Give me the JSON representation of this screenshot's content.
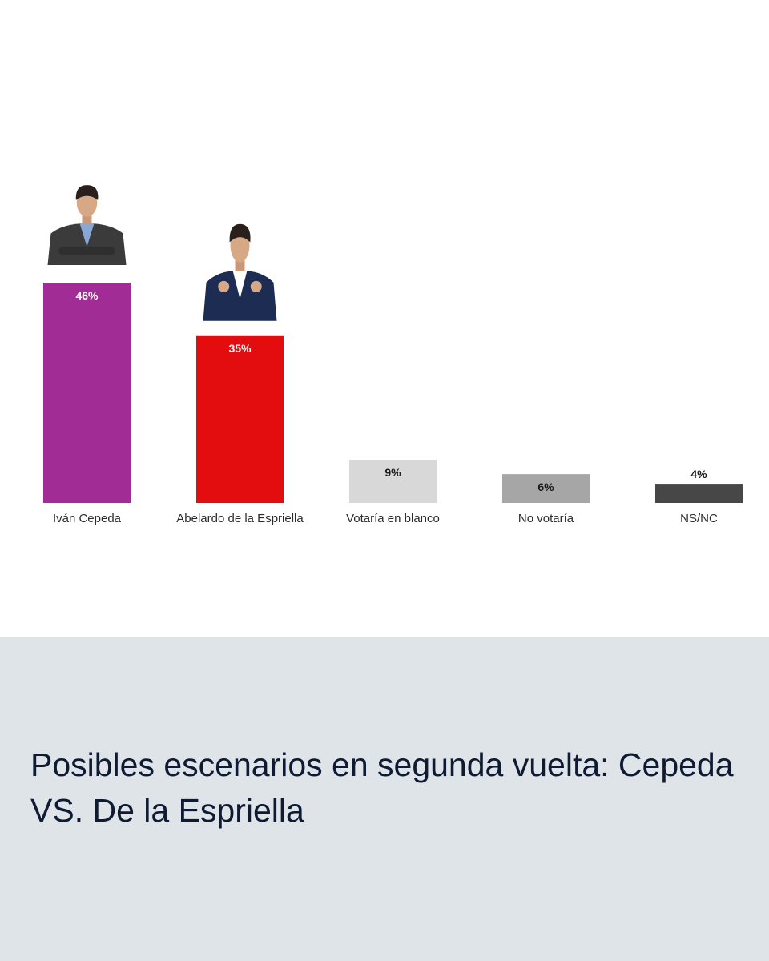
{
  "chart_data": {
    "type": "bar",
    "categories": [
      "Iván Cepeda",
      "Abelardo de la Espriella",
      "Votaría en blanco",
      "No votaría",
      "NS/NC"
    ],
    "values": [
      46,
      35,
      9,
      6,
      4
    ],
    "data_labels": [
      "46%",
      "35%",
      "9%",
      "6%",
      "4%"
    ],
    "colors": [
      "#a22c95",
      "#e30d0f",
      "#d8d8d8",
      "#a6a6a6",
      "#474747"
    ],
    "label_colors": [
      "#ffffff",
      "#ffffff",
      "#1a1a1a",
      "#1a1a1a",
      "#1a1a1a"
    ],
    "portraits": [
      "person-portrait-icon",
      "person-portrait-icon",
      null,
      null,
      null
    ],
    "ylim": [
      0,
      46
    ],
    "grid": false,
    "legend": "none"
  },
  "caption": {
    "title": "Posibles escenarios en segunda vuelta: Cepeda VS. De la Espriella"
  }
}
